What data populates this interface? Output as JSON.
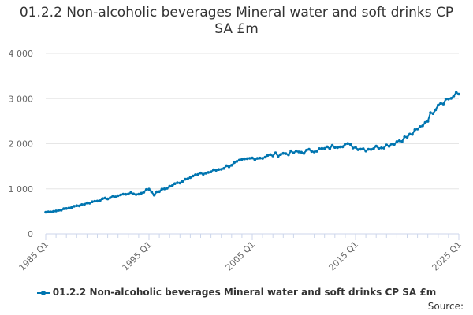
{
  "chart_data": {
    "type": "line",
    "title": "01.2.2 Non-alcoholic beverages Mineral water and soft drinks CP SA £m",
    "xlabel": "",
    "ylabel": "",
    "x_range": [
      "1985 Q1",
      "2025 Q1"
    ],
    "x_ticks": [
      "1985 Q1",
      "1995 Q1",
      "2005 Q1",
      "2015 Q1",
      "2025 Q1"
    ],
    "y_ticks": [
      0,
      1000,
      2000,
      3000,
      4000
    ],
    "y_tick_labels": [
      "0",
      "1 000",
      "2 000",
      "3 000",
      "4 000"
    ],
    "ylim": [
      0,
      4000
    ],
    "grid": "horizontal",
    "legend_position": "bottom",
    "series": [
      {
        "name": "01.2.2 Non-alcoholic beverages Mineral water and soft drinks CP SA £m",
        "color": "#0075b0",
        "points": [
          [
            "1985 Q1",
            480
          ],
          [
            "1986 Q1",
            510
          ],
          [
            "1987 Q1",
            560
          ],
          [
            "1988 Q1",
            620
          ],
          [
            "1989 Q1",
            680
          ],
          [
            "1990 Q1",
            740
          ],
          [
            "1991 Q1",
            790
          ],
          [
            "1992 Q1",
            850
          ],
          [
            "1993 Q1",
            900
          ],
          [
            "1994 Q1",
            880
          ],
          [
            "1995 Q1",
            1000
          ],
          [
            "1995 Q3",
            880
          ],
          [
            "1996 Q1",
            950
          ],
          [
            "1997 Q1",
            1050
          ],
          [
            "1998 Q1",
            1150
          ],
          [
            "1999 Q1",
            1280
          ],
          [
            "2000 Q1",
            1320
          ],
          [
            "2001 Q1",
            1380
          ],
          [
            "2002 Q1",
            1450
          ],
          [
            "2003 Q1",
            1540
          ],
          [
            "2004 Q1",
            1620
          ],
          [
            "2005 Q1",
            1680
          ],
          [
            "2006 Q1",
            1700
          ],
          [
            "2007 Q1",
            1750
          ],
          [
            "2008 Q1",
            1780
          ],
          [
            "2009 Q1",
            1800
          ],
          [
            "2010 Q1",
            1820
          ],
          [
            "2011 Q1",
            1860
          ],
          [
            "2012 Q1",
            1880
          ],
          [
            "2013 Q1",
            1950
          ],
          [
            "2014 Q1",
            1990
          ],
          [
            "2015 Q1",
            1920
          ],
          [
            "2016 Q1",
            1880
          ],
          [
            "2017 Q1",
            1920
          ],
          [
            "2018 Q1",
            1960
          ],
          [
            "2019 Q1",
            2050
          ],
          [
            "2020 Q1",
            2150
          ],
          [
            "2021 Q1",
            2300
          ],
          [
            "2022 Q1",
            2550
          ],
          [
            "2023 Q1",
            2900
          ],
          [
            "2024 Q1",
            3000
          ],
          [
            "2025 Q1",
            3100
          ]
        ]
      }
    ]
  },
  "source_label": "Source:"
}
